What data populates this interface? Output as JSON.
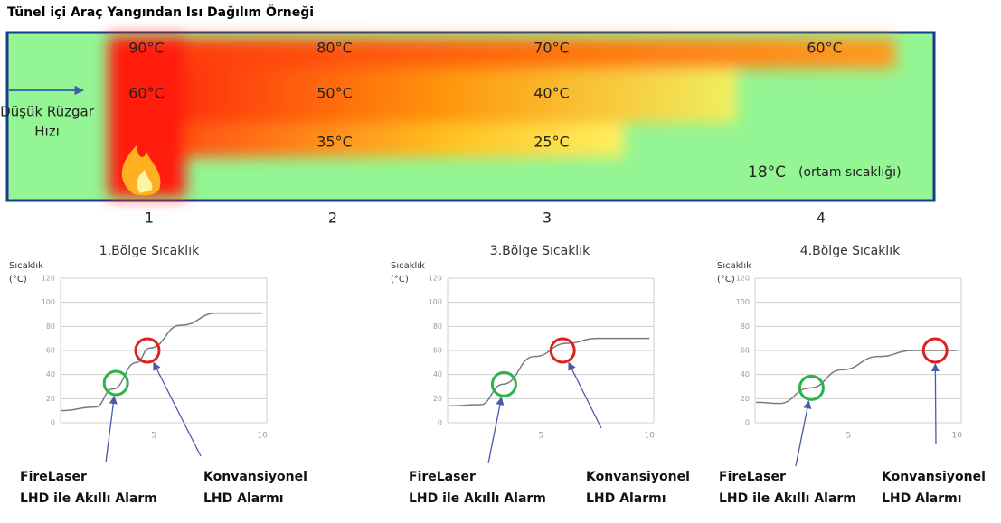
{
  "title": "Tünel içi Araç Yangından Isı Dağılım Örneği",
  "tunnel": {
    "wind": [
      "Düşük Rüzgar",
      "Hızı"
    ],
    "temps": [
      "90°C",
      "80°C",
      "70°C",
      "60°C",
      "60°C",
      "50°C",
      "40°C",
      "35°C",
      "25°C"
    ],
    "ambient": "18°C",
    "ambient_note": "(ortam sıcaklığı)",
    "zones": [
      "1",
      "2",
      "3",
      "4"
    ]
  },
  "chart_data": [
    {
      "type": "line",
      "title": "1.Bölge Sıcaklık",
      "ylabel": [
        "Sıcaklık",
        "(°C)"
      ],
      "x": [
        0.7,
        2.3,
        3.1,
        4.2,
        4.8,
        6.25,
        7.9,
        10
      ],
      "values": [
        10,
        13,
        28,
        50,
        62,
        81,
        91,
        91
      ],
      "color": "#7a7a7a",
      "xlim": [
        0.7,
        10.2
      ],
      "ylim": [
        0,
        120
      ],
      "xticks": [
        5,
        10
      ],
      "yticks": [
        0,
        20,
        40,
        60,
        80,
        100,
        120
      ],
      "grid": true,
      "markers": [
        {
          "x": 3.25,
          "y": 33,
          "color": "#2db34a",
          "label": [
            "FireLaser",
            "LHD ile Akıllı Alarm"
          ]
        },
        {
          "x": 4.7,
          "y": 60,
          "color": "#e02020",
          "label": [
            "Konvansiyonel",
            "LHD Alarmı"
          ]
        }
      ]
    },
    {
      "type": "line",
      "title": "3.Bölge Sıcaklık",
      "ylabel": [
        "Sıcaklık",
        "(°C)"
      ],
      "x": [
        0.75,
        2.2,
        3.25,
        4.7,
        6.2,
        7.6,
        10
      ],
      "values": [
        14,
        15,
        32,
        55,
        66,
        70,
        70
      ],
      "color": "#7a7a7a",
      "xlim": [
        0.7,
        10.2
      ],
      "ylim": [
        0,
        120
      ],
      "xticks": [
        5,
        10
      ],
      "yticks": [
        0,
        20,
        40,
        60,
        80,
        100,
        120
      ],
      "grid": true,
      "markers": [
        {
          "x": 3.3,
          "y": 32,
          "color": "#2db34a",
          "label": [
            "FireLaser",
            "LHD ile Akıllı Alarm"
          ]
        },
        {
          "x": 6,
          "y": 60,
          "color": "#e02020",
          "label": [
            "Konvansiyonel",
            "LHD Alarmı"
          ]
        }
      ]
    },
    {
      "type": "line",
      "title": "4.Bölge Sıcaklık",
      "ylabel": [
        "Sıcaklık",
        "(°C)"
      ],
      "x": [
        0.75,
        1.8,
        3.25,
        4.7,
        6.4,
        8,
        10
      ],
      "values": [
        17,
        16,
        29,
        44,
        55,
        60,
        60
      ],
      "color": "#7a7a7a",
      "xlim": [
        0.7,
        10.2
      ],
      "ylim": [
        0,
        120
      ],
      "xticks": [
        5,
        10
      ],
      "yticks": [
        0,
        20,
        40,
        60,
        80,
        100,
        120
      ],
      "grid": true,
      "markers": [
        {
          "x": 3.3,
          "y": 29,
          "color": "#2db34a",
          "label": [
            "FireLaser",
            "LHD ile Akıllı Alarm"
          ]
        },
        {
          "x": 9,
          "y": 60,
          "color": "#e02020",
          "label": [
            "Konvansiyonel",
            "LHD Alarmı"
          ]
        }
      ]
    }
  ]
}
